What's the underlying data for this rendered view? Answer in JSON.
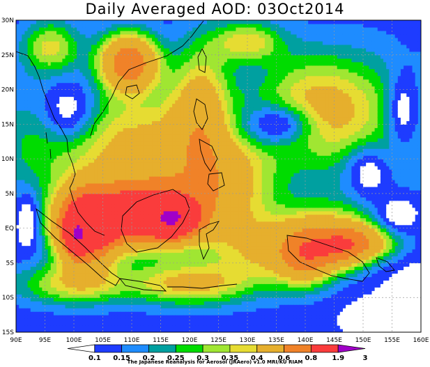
{
  "title": "Daily Averaged AOD: 03Oct2014",
  "credit": "The Japanese Reanalysis for Aerosol (JRAero) v1.0 MRI/KU RIAM",
  "lat_labels": [
    "30N",
    "25N",
    "20N",
    "15N",
    "10N",
    "5N",
    "EQ",
    "5S",
    "10S",
    "15S"
  ],
  "lon_labels": [
    "90E",
    "95E",
    "100E",
    "105E",
    "110E",
    "115E",
    "120E",
    "125E",
    "130E",
    "135E",
    "140E",
    "145E",
    "150E",
    "155E",
    "160E"
  ],
  "colorbar": {
    "labels": [
      "0.1",
      "0.15",
      "0.2",
      "0.25",
      "0.3",
      "0.35",
      "0.4",
      "0.6",
      "0.8",
      "1.9",
      "3"
    ],
    "colors": [
      "#ffffff",
      "#1e3cff",
      "#1e8cff",
      "#00a0a0",
      "#00dc00",
      "#a0e632",
      "#e6dc32",
      "#e6af2d",
      "#f08228",
      "#fa3c3c",
      "#a000c8"
    ]
  },
  "field": {
    "lon_range": [
      90,
      160
    ],
    "lat_range": [
      -15,
      30
    ],
    "bins": [
      0.1,
      0.15,
      0.2,
      0.25,
      0.3,
      0.35,
      0.4,
      0.6,
      0.8,
      1.9,
      3
    ]
  }
}
